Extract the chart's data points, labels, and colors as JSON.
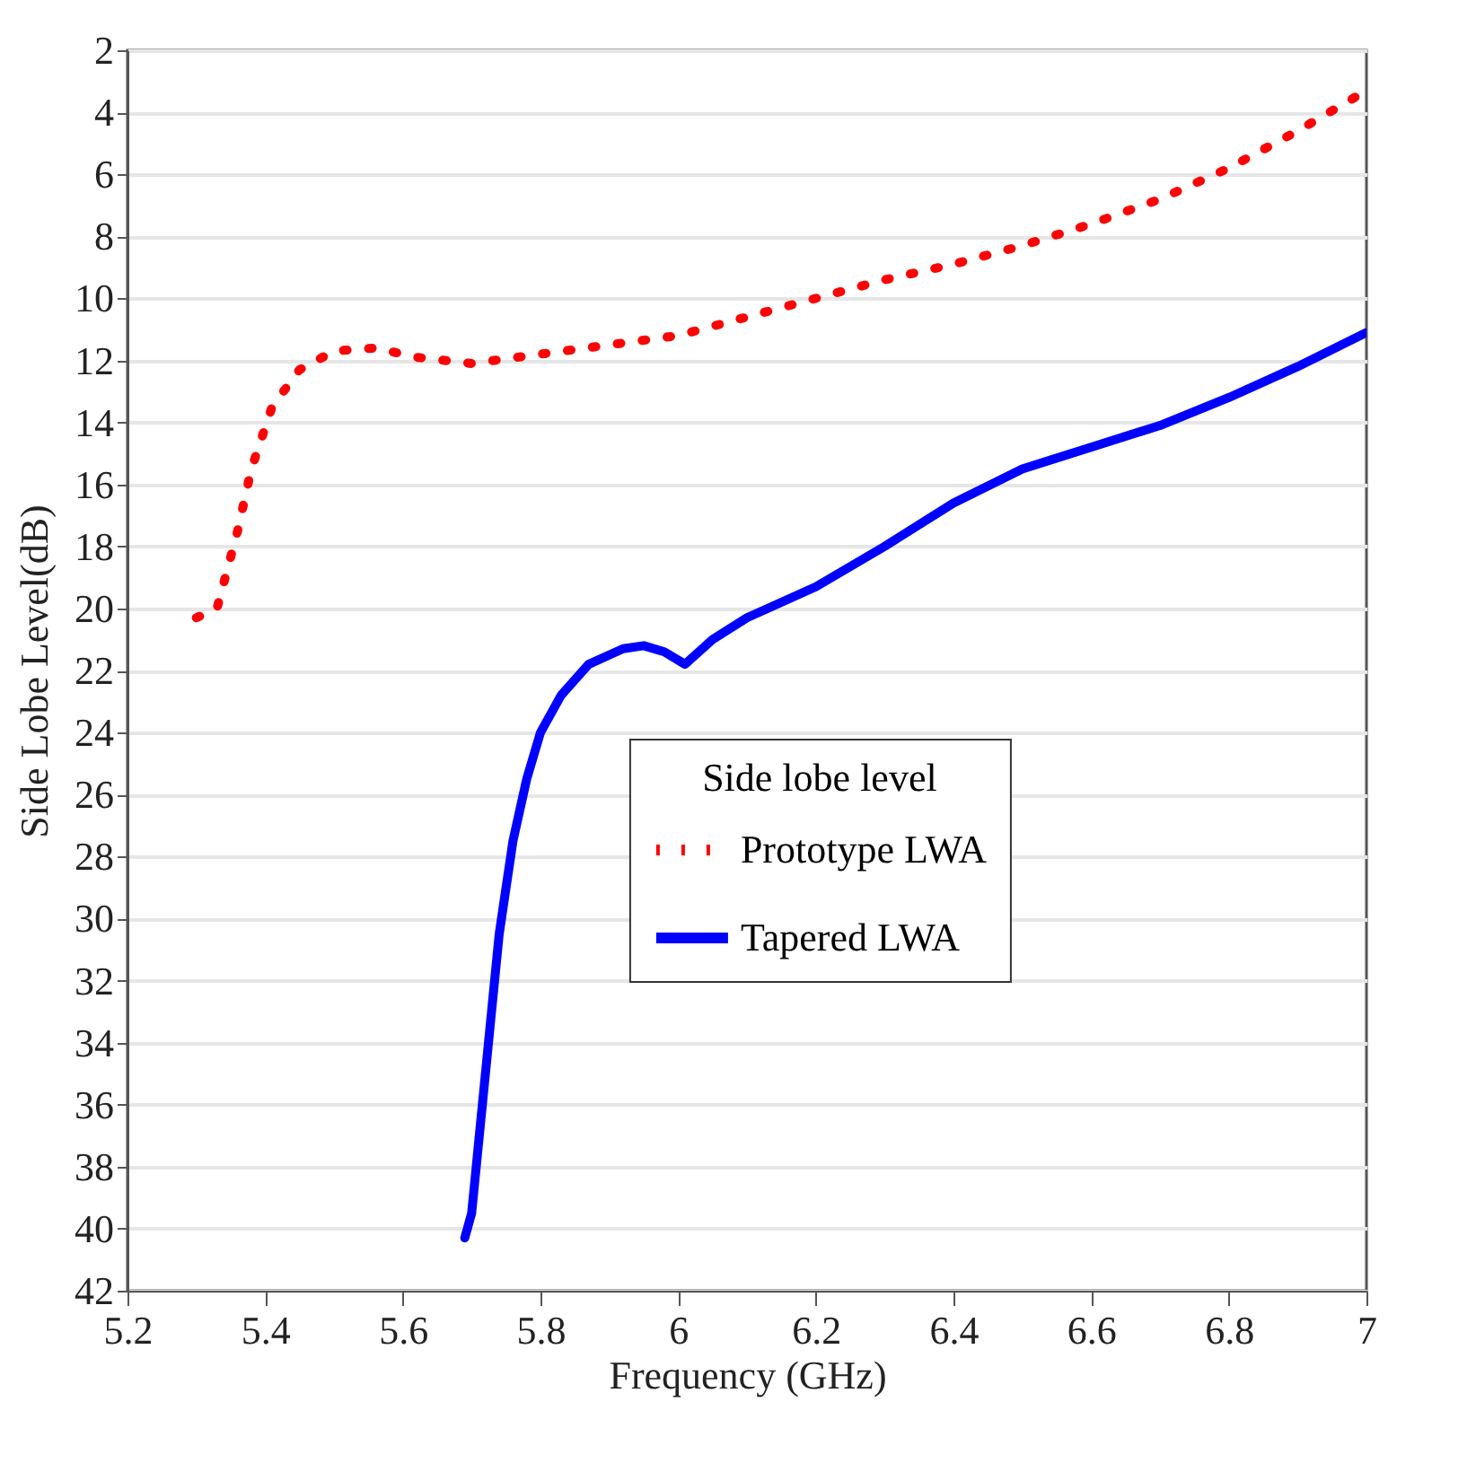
{
  "chart_data": {
    "type": "line",
    "xlabel": "Frequency (GHz)",
    "ylabel": "Side Lobe Level(dB)",
    "legend_title": "Side lobe level",
    "xlim": [
      5.2,
      7
    ],
    "xticks": [
      5.2,
      5.4,
      5.6,
      5.8,
      6,
      6.2,
      6.4,
      6.6,
      6.8,
      7
    ],
    "ylim": [
      42,
      2
    ],
    "yticks": [
      2,
      4,
      6,
      8,
      10,
      12,
      14,
      16,
      18,
      20,
      22,
      24,
      26,
      28,
      30,
      32,
      34,
      36,
      38,
      40,
      42
    ],
    "grid": "y",
    "legend": "right",
    "marker": "none",
    "series": [
      {
        "name": "Prototype LWA",
        "color": "#ff0000",
        "line_style": "dotted",
        "x": [
          5.3,
          5.33,
          5.36,
          5.38,
          5.41,
          5.45,
          5.5,
          5.56,
          5.62,
          5.7,
          5.8,
          5.9,
          6.0,
          6.1,
          6.2,
          6.3,
          6.4,
          6.5,
          6.6,
          6.7,
          6.8,
          6.9,
          7.0
        ],
        "values": [
          20.3,
          20,
          17.5,
          15.5,
          13.5,
          12.3,
          11.7,
          11.6,
          11.9,
          12.1,
          11.8,
          11.5,
          11.2,
          10.6,
          10,
          9.4,
          8.9,
          8.3,
          7.6,
          6.8,
          5.8,
          4.6,
          3.3
        ]
      },
      {
        "name": "Tapered LWA",
        "color": "#0000ff",
        "line_style": "solid",
        "x": [
          5.69,
          5.7,
          5.72,
          5.74,
          5.76,
          5.78,
          5.8,
          5.83,
          5.87,
          5.92,
          5.95,
          5.98,
          6.01,
          6.05,
          6.1,
          6.2,
          6.3,
          6.4,
          6.5,
          6.6,
          6.7,
          6.8,
          6.9,
          7.0
        ],
        "values": [
          40.3,
          39.5,
          35,
          30.5,
          27.5,
          25.5,
          24,
          22.8,
          21.8,
          21.3,
          21.2,
          21.4,
          21.8,
          21,
          20.3,
          19.3,
          18,
          16.6,
          15.5,
          14.8,
          14.1,
          13.2,
          12.2,
          11.1
        ]
      }
    ]
  }
}
